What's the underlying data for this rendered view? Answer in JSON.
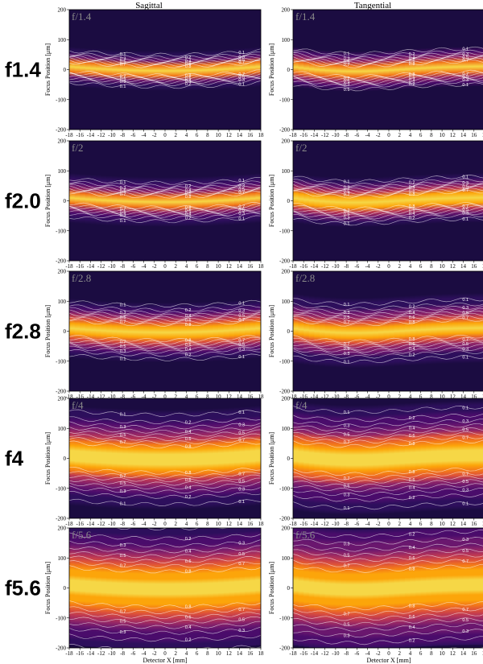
{
  "chart_data": {
    "type": "heatmap",
    "columns": [
      "Sagittal",
      "Tangential"
    ],
    "rows": [
      {
        "row_label": "f1.4",
        "panel_label": "f/1.4",
        "sagittal_width": 25,
        "tangential_width": 28,
        "sagittal_peak": 0.9,
        "tangential_peak": 0.9
      },
      {
        "row_label": "f2.0",
        "panel_label": "f/2",
        "sagittal_width": 30,
        "tangential_width": 33,
        "sagittal_peak": 0.9,
        "tangential_peak": 0.9
      },
      {
        "row_label": "f2.8",
        "panel_label": "f/2.8",
        "sagittal_width": 42,
        "tangential_width": 45,
        "sagittal_peak": 0.9,
        "tangential_peak": 0.9
      },
      {
        "row_label": "f4",
        "panel_label": "f/4",
        "sagittal_width": 70,
        "tangential_width": 75,
        "sagittal_peak": 0.9,
        "tangential_peak": 0.9
      },
      {
        "row_label": "f5.6",
        "panel_label": "f/5.6",
        "sagittal_width": 95,
        "tangential_width": 100,
        "sagittal_peak": 0.9,
        "tangential_peak": 0.9
      }
    ],
    "xlabel": "Detector X [mm]",
    "ylabel": "Focus Position [μm]",
    "x_ticks": [
      -18,
      -16,
      -14,
      -12,
      -10,
      -8,
      -6,
      -4,
      -2,
      0,
      2,
      4,
      6,
      8,
      10,
      12,
      14,
      16,
      18
    ],
    "y_ticks": [
      -200,
      -100,
      0,
      100,
      200
    ],
    "xlim": [
      -18,
      18
    ],
    "ylim": [
      -200,
      200
    ],
    "contour_levels": [
      0.1,
      0.2,
      0.3,
      0.4,
      0.5,
      0.6,
      0.7,
      0.8
    ],
    "colormap": "inferno"
  }
}
